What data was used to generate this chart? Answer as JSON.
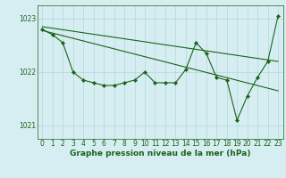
{
  "title": "Graphe pression niveau de la mer (hPa)",
  "bg_color": "#d6eef2",
  "line_color": "#1a6318",
  "grid_color": "#b0d8de",
  "text_color": "#1a6318",
  "ylim": [
    1020.75,
    1023.25
  ],
  "xlim": [
    -0.5,
    23.5
  ],
  "yticks": [
    1021,
    1022,
    1023
  ],
  "xticks": [
    0,
    1,
    2,
    3,
    4,
    5,
    6,
    7,
    8,
    9,
    10,
    11,
    12,
    13,
    14,
    15,
    16,
    17,
    18,
    19,
    20,
    21,
    22,
    23
  ],
  "data_x": [
    0,
    1,
    2,
    3,
    4,
    5,
    6,
    7,
    8,
    9,
    10,
    11,
    12,
    13,
    14,
    15,
    16,
    17,
    18,
    19,
    20,
    21,
    22,
    23
  ],
  "data_y": [
    1022.8,
    1022.7,
    1022.55,
    1022.0,
    1021.85,
    1021.8,
    1021.75,
    1021.75,
    1021.8,
    1021.85,
    1022.0,
    1021.8,
    1021.8,
    1021.8,
    1022.05,
    1022.55,
    1022.35,
    1021.9,
    1021.85,
    1021.1,
    1021.55,
    1021.9,
    1022.2,
    1023.05
  ],
  "trend1_x": [
    0,
    23
  ],
  "trend1_y": [
    1022.85,
    1022.2
  ],
  "trend2_x": [
    0,
    23
  ],
  "trend2_y": [
    1022.78,
    1021.65
  ],
  "tick_fontsize": 5.5,
  "label_fontsize": 6.5,
  "lw": 0.8,
  "marker_size": 2.2
}
